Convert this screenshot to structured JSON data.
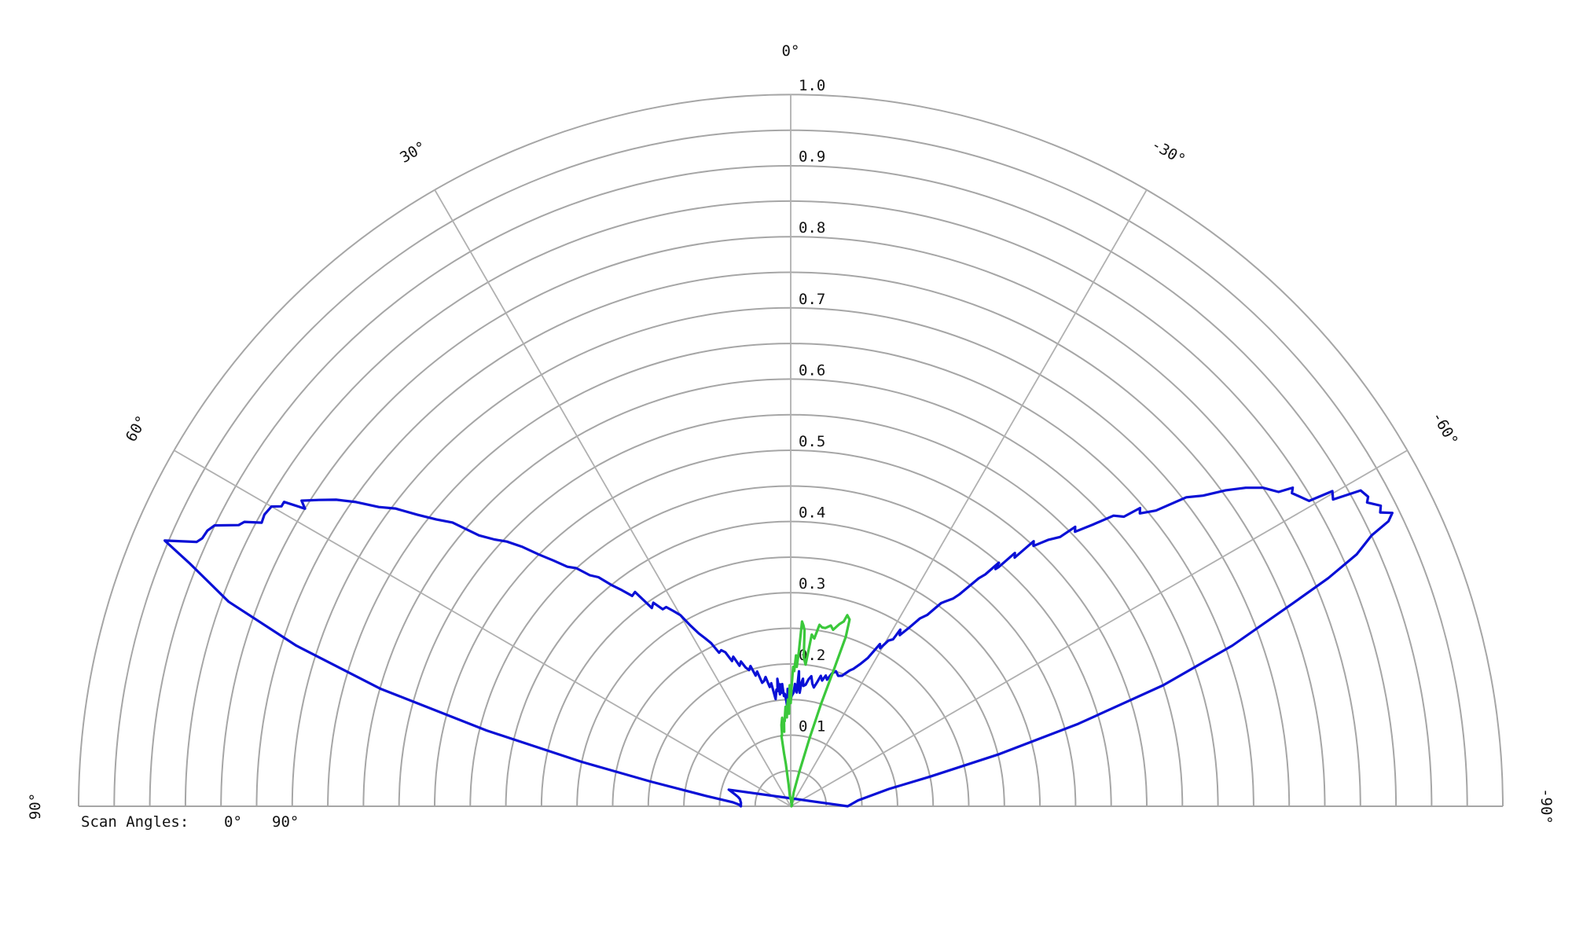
{
  "chart_data": {
    "type": "polar-half",
    "radial_axis": {
      "range": [
        0,
        1.0
      ],
      "ticks": [
        0.1,
        0.2,
        0.3,
        0.4,
        0.5,
        0.6,
        0.7,
        0.8,
        0.9,
        1.0
      ],
      "tick_labels": [
        "0.1",
        "0.2",
        "0.3",
        "0.4",
        "0.5",
        "0.6",
        "0.7",
        "0.8",
        "0.9",
        "1.0"
      ]
    },
    "angular_axis": {
      "range": [
        -90,
        90
      ],
      "direction": "positive-left",
      "ticks": [
        90,
        60,
        30,
        0,
        -30,
        -60,
        -90
      ],
      "tick_labels": [
        "90°",
        "60°",
        "30°",
        "0°",
        "-30°",
        "-60°",
        "-90°"
      ]
    },
    "grid": true,
    "legend": {
      "placement": "bottom-left",
      "title": "Scan Angles:",
      "entries": [
        "0°",
        "90°"
      ]
    },
    "series": [
      {
        "name": "0°",
        "color": "#0a10d6",
        "points": [
          [
            -90,
            0.08
          ],
          [
            -85,
            0.095
          ],
          [
            -80,
            0.14
          ],
          [
            -78,
            0.2
          ],
          [
            -76,
            0.3
          ],
          [
            -74,
            0.42
          ],
          [
            -72,
            0.55
          ],
          [
            -70,
            0.66
          ],
          [
            -68,
            0.76
          ],
          [
            -67,
            0.82
          ],
          [
            -66,
            0.87
          ],
          [
            -65,
            0.9
          ],
          [
            -64.5,
            0.93
          ],
          [
            -64,
            0.94
          ],
          [
            -63.5,
            0.925
          ],
          [
            -63,
            0.93
          ],
          [
            -62.2,
            0.915
          ],
          [
            -61.8,
            0.92
          ],
          [
            -61,
            0.915
          ],
          [
            -60.5,
            0.875
          ],
          [
            -59.8,
            0.88
          ],
          [
            -59.5,
            0.845
          ],
          [
            -58,
            0.83
          ],
          [
            -57.6,
            0.835
          ],
          [
            -57.2,
            0.815
          ],
          [
            -56,
            0.8
          ],
          [
            -55,
            0.78
          ],
          [
            -54,
            0.755
          ],
          [
            -53,
            0.725
          ],
          [
            -52,
            0.705
          ],
          [
            -51,
            0.66
          ],
          [
            -50,
            0.64
          ],
          [
            -49.5,
            0.645
          ],
          [
            -49,
            0.62
          ],
          [
            -48,
            0.61
          ],
          [
            -47,
            0.58
          ],
          [
            -46,
            0.555
          ],
          [
            -45.5,
            0.56
          ],
          [
            -45,
            0.535
          ],
          [
            -44,
            0.52
          ],
          [
            -43,
            0.5
          ],
          [
            -42.5,
            0.505
          ],
          [
            -42,
            0.47
          ],
          [
            -41.5,
            0.475
          ],
          [
            -41,
            0.445
          ],
          [
            -40.8,
            0.44
          ],
          [
            -40.5,
            0.45
          ],
          [
            -40,
            0.425
          ],
          [
            -39.5,
            0.415
          ],
          [
            -38.5,
            0.38
          ],
          [
            -38,
            0.37
          ],
          [
            -37,
            0.36
          ],
          [
            -36.5,
            0.355
          ],
          [
            -35.5,
            0.33
          ],
          [
            -34.5,
            0.32
          ],
          [
            -33.5,
            0.3
          ],
          [
            -32.5,
            0.285
          ],
          [
            -31.8,
            0.292
          ],
          [
            -31.5,
            0.275
          ],
          [
            -30.5,
            0.27
          ],
          [
            -29.5,
            0.255
          ],
          [
            -28.8,
            0.26
          ],
          [
            -27.5,
            0.235
          ],
          [
            -26,
            0.222
          ],
          [
            -24.5,
            0.212
          ],
          [
            -23.5,
            0.208
          ],
          [
            -22,
            0.2
          ],
          [
            -21.5,
            0.197
          ],
          [
            -20,
            0.195
          ],
          [
            -18.5,
            0.2
          ],
          [
            -17.2,
            0.195
          ],
          [
            -16,
            0.185
          ],
          [
            -15,
            0.19
          ],
          [
            -14,
            0.182
          ],
          [
            -13,
            0.188
          ],
          [
            -12,
            0.178
          ],
          [
            -11,
            0.17
          ],
          [
            -10,
            0.175
          ],
          [
            -9.5,
            0.18
          ],
          [
            -9,
            0.185
          ],
          [
            -8,
            0.18
          ],
          [
            -7,
            0.172
          ],
          [
            -6,
            0.17
          ],
          [
            -5.5,
            0.18
          ],
          [
            -5,
            0.175
          ],
          [
            -4.5,
            0.16
          ],
          [
            -4,
            0.168
          ],
          [
            -3.5,
            0.19
          ],
          [
            -3,
            0.16
          ],
          [
            -2.5,
            0.165
          ],
          [
            -2,
            0.172
          ],
          [
            -1.5,
            0.16
          ],
          [
            -0.5,
            0.155
          ],
          [
            0,
            0.15
          ],
          [
            0.5,
            0.155
          ],
          [
            1,
            0.143
          ],
          [
            1.5,
            0.165
          ],
          [
            2,
            0.14
          ],
          [
            2.5,
            0.15
          ],
          [
            3,
            0.158
          ],
          [
            3.5,
            0.155
          ],
          [
            4,
            0.172
          ],
          [
            4.5,
            0.16
          ],
          [
            5,
            0.172
          ],
          [
            5.5,
            0.158
          ],
          [
            6,
            0.18
          ],
          [
            6.5,
            0.163
          ],
          [
            7,
            0.165
          ],
          [
            8,
            0.152
          ],
          [
            9,
            0.175
          ],
          [
            10,
            0.17
          ],
          [
            11,
            0.185
          ],
          [
            12,
            0.18
          ],
          [
            13,
            0.178
          ],
          [
            14,
            0.195
          ],
          [
            15,
            0.19
          ],
          [
            16,
            0.205
          ],
          [
            17,
            0.2
          ],
          [
            18,
            0.205
          ],
          [
            19,
            0.215
          ],
          [
            20,
            0.21
          ],
          [
            21,
            0.225
          ],
          [
            22,
            0.22
          ],
          [
            23,
            0.235
          ],
          [
            24,
            0.24
          ],
          [
            25,
            0.238
          ],
          [
            26,
            0.255
          ],
          [
            27,
            0.265
          ],
          [
            28,
            0.275
          ],
          [
            29,
            0.29
          ],
          [
            30,
            0.31
          ],
          [
            31,
            0.32
          ],
          [
            32,
            0.33
          ],
          [
            33,
            0.33
          ],
          [
            34,
            0.345
          ],
          [
            35,
            0.34
          ],
          [
            36,
            0.372
          ],
          [
            37,
            0.37
          ],
          [
            38,
            0.385
          ],
          [
            39,
            0.4
          ],
          [
            40,
            0.42
          ],
          [
            41,
            0.43
          ],
          [
            42,
            0.45
          ],
          [
            43,
            0.46
          ],
          [
            44,
            0.48
          ],
          [
            45,
            0.5
          ],
          [
            46,
            0.525
          ],
          [
            47,
            0.545
          ],
          [
            48,
            0.56
          ],
          [
            49,
            0.58
          ],
          [
            50,
            0.62
          ],
          [
            51,
            0.64
          ],
          [
            52,
            0.665
          ],
          [
            53,
            0.695
          ],
          [
            54,
            0.715
          ],
          [
            55,
            0.745
          ],
          [
            56,
            0.77
          ],
          [
            57,
            0.79
          ],
          [
            58,
            0.81
          ],
          [
            58.5,
            0.8
          ],
          [
            59,
            0.83
          ],
          [
            59.5,
            0.83
          ],
          [
            60,
            0.842
          ],
          [
            61,
            0.845
          ],
          [
            61.8,
            0.843
          ],
          [
            62.5,
            0.865
          ],
          [
            63,
            0.87
          ],
          [
            64,
            0.9
          ],
          [
            64.7,
            0.906
          ],
          [
            65.5,
            0.908
          ],
          [
            66,
            0.913
          ],
          [
            67,
            0.955
          ],
          [
            68,
            0.91
          ],
          [
            70,
            0.84
          ],
          [
            72,
            0.73
          ],
          [
            74,
            0.6
          ],
          [
            76,
            0.44
          ],
          [
            78,
            0.3
          ],
          [
            80,
            0.2
          ],
          [
            83,
            0.12
          ],
          [
            86,
            0.082
          ],
          [
            88,
            0.073
          ],
          [
            90,
            0.07
          ],
          [
            88,
            0.07
          ],
          [
            86,
            0.07
          ],
          [
            84,
            0.071
          ],
          [
            82,
            0.072
          ],
          [
            80,
            0.075
          ],
          [
            78,
            0.08
          ],
          [
            75,
            0.09
          ]
        ]
      },
      {
        "name": "90°",
        "color": "#3bc83b",
        "points": [
          [
            -12,
            0.02
          ],
          [
            -14,
            0.05
          ],
          [
            -15.5,
            0.1
          ],
          [
            -16.5,
            0.15
          ],
          [
            -17.5,
            0.2
          ],
          [
            -18,
            0.25
          ],
          [
            -17.5,
            0.275
          ],
          [
            -16.5,
            0.28
          ],
          [
            -16,
            0.27
          ],
          [
            -15,
            0.265
          ],
          [
            -13.5,
            0.255
          ],
          [
            -12.5,
            0.26
          ],
          [
            -11,
            0.255
          ],
          [
            -10,
            0.255
          ],
          [
            -9,
            0.258
          ],
          [
            -8,
            0.238
          ],
          [
            -7,
            0.243
          ],
          [
            -6,
            0.2
          ],
          [
            -5,
            0.21
          ],
          [
            -4.5,
            0.248
          ],
          [
            -4,
            0.255
          ],
          [
            -3.5,
            0.26
          ],
          [
            -3,
            0.217
          ],
          [
            -2.5,
            0.196
          ],
          [
            -2,
            0.212
          ],
          [
            -1.5,
            0.19
          ],
          [
            -1,
            0.196
          ],
          [
            -0.5,
            0.17
          ],
          [
            0,
            0.145
          ],
          [
            0.5,
            0.17
          ],
          [
            0.8,
            0.15
          ],
          [
            1,
            0.13
          ],
          [
            1.5,
            0.15
          ],
          [
            2,
            0.14
          ],
          [
            2.5,
            0.125
          ],
          [
            3,
            0.14
          ],
          [
            3.5,
            0.13
          ],
          [
            4,
            0.12
          ],
          [
            4.5,
            0.12
          ],
          [
            5,
            0.105
          ],
          [
            5.5,
            0.125
          ],
          [
            6.5,
            0.115
          ],
          [
            7,
            0.1
          ],
          [
            7.5,
            0.1
          ],
          [
            7.2,
            0.075
          ],
          [
            6.5,
            0.06
          ],
          [
            6,
            0.04
          ],
          [
            5.5,
            0.03
          ],
          [
            5,
            0.015
          ],
          [
            0,
            0.01
          ],
          [
            -5,
            0.008
          ],
          [
            -8,
            0.005
          ],
          [
            -20,
            0.005
          ],
          [
            -40,
            0.003
          ],
          [
            -60,
            0.002
          ],
          [
            -90,
            0.001
          ]
        ]
      }
    ]
  }
}
